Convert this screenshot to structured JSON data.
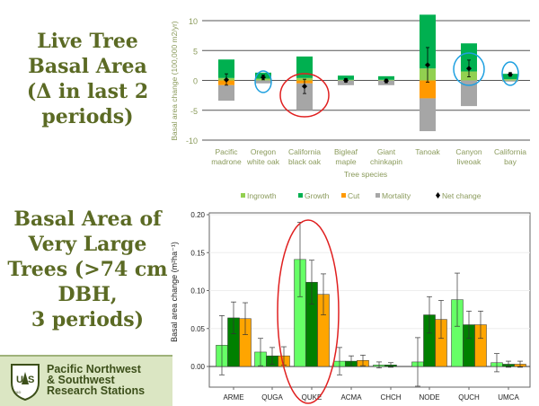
{
  "slide": {
    "title1_lines": [
      "Live Tree",
      "Basal Area",
      "(Δ in last 2",
      "periods)"
    ],
    "title2_lines": [
      "Basal Area of",
      "Very Large",
      "Trees (>74 cm",
      "DBH,",
      "3 periods)"
    ],
    "footer_lines": [
      "Pacific Northwest",
      "& Southwest",
      "Research Stations"
    ],
    "logo_text": "US Research & Development"
  },
  "colors": {
    "ingrowth": "#92d050",
    "growth": "#00b050",
    "cut": "#ff9900",
    "mortality": "#a6a6a6",
    "net": "#000000",
    "period1": "#66ff66",
    "period2": "#008000",
    "period3": "#ffa500",
    "highlight_red": "#e02020",
    "highlight_blue": "#1ea0e0",
    "title": "#5b6a24"
  },
  "chart_data": [
    {
      "type": "bar",
      "stacked": true,
      "title": "",
      "xlabel": "Tree species",
      "ylabel": "Basal area change (100,000 m2/yr)",
      "ylim": [
        -10,
        11
      ],
      "yticks": [
        "10",
        "5",
        "0",
        "-5",
        "-10"
      ],
      "ytick_values": [
        10,
        5,
        0,
        -5,
        -10
      ],
      "categories": [
        [
          "Pacific",
          "madrone"
        ],
        [
          "Oregon",
          "white oak"
        ],
        [
          "California",
          "black oak"
        ],
        [
          "Bigleaf",
          "maple"
        ],
        [
          "Giant",
          "chinkapin"
        ],
        [
          "Tanoak",
          ""
        ],
        [
          "Canyon",
          "liveoak"
        ],
        [
          "California",
          "bay"
        ]
      ],
      "series": [
        {
          "name": "Ingrowth",
          "values": [
            0.4,
            0.3,
            0.4,
            0.1,
            0.1,
            2.0,
            1.5,
            0.2
          ]
        },
        {
          "name": "Growth",
          "values": [
            3.1,
            1.0,
            3.6,
            0.7,
            0.6,
            9.0,
            4.7,
            0.9
          ]
        },
        {
          "name": "Cut",
          "values": [
            -0.8,
            0,
            -0.5,
            0,
            0,
            -3.0,
            0,
            0
          ]
        },
        {
          "name": "Mortality",
          "values": [
            -2.6,
            -0.5,
            -4.5,
            -0.8,
            -0.8,
            -5.5,
            -4.3,
            -0.2
          ]
        }
      ],
      "net_change": {
        "name": "Net change",
        "values": [
          0.1,
          0.5,
          -1.0,
          0.0,
          -0.1,
          2.6,
          2.0,
          1.0
        ],
        "err_low": [
          -0.8,
          0.1,
          -2.2,
          -0.3,
          -0.4,
          -0.3,
          0.6,
          0.7
        ],
        "err_high": [
          1.1,
          0.9,
          0.2,
          0.3,
          0.2,
          5.5,
          3.4,
          1.3
        ]
      },
      "legend": [
        "Ingrowth",
        "Growth",
        "Cut",
        "Mortality",
        "Net change"
      ],
      "legend_position": "bottom",
      "grid": true,
      "highlights": {
        "red": [
          2
        ],
        "blue": [
          1,
          6,
          7
        ]
      }
    },
    {
      "type": "bar",
      "title": "",
      "xlabel": "",
      "ylabel": "Basal area change (m²ha⁻¹)",
      "ylim": [
        -0.025,
        0.2
      ],
      "yticks": [
        "0.20",
        "0.15",
        "0.10",
        "0.05",
        "0.00"
      ],
      "ytick_values": [
        0.2,
        0.15,
        0.1,
        0.05,
        0.0
      ],
      "categories": [
        "ARME",
        "QUGA",
        "QUKE",
        "ACMA",
        "CHCH",
        "NODE",
        "QUCH",
        "UMCA"
      ],
      "series": [
        {
          "name": "Period 1",
          "values": [
            0.028,
            0.019,
            0.141,
            0.007,
            0.002,
            0.006,
            0.088,
            0.005
          ],
          "err": [
            0.039,
            0.018,
            0.049,
            0.018,
            0.004,
            0.032,
            0.035,
            0.012
          ]
        },
        {
          "name": "Period 2",
          "values": [
            0.064,
            0.014,
            0.111,
            0.007,
            0.002,
            0.068,
            0.055,
            0.003
          ],
          "err": [
            0.021,
            0.011,
            0.029,
            0.007,
            0.003,
            0.024,
            0.018,
            0.004
          ]
        },
        {
          "name": "Period 3",
          "values": [
            0.063,
            0.014,
            0.095,
            0.008,
            0.0,
            0.062,
            0.055,
            0.003
          ],
          "err": [
            0.021,
            0.012,
            0.027,
            0.007,
            0.0,
            0.025,
            0.018,
            0.004
          ]
        }
      ],
      "grid": true,
      "highlights": {
        "red": [
          2
        ]
      }
    }
  ]
}
